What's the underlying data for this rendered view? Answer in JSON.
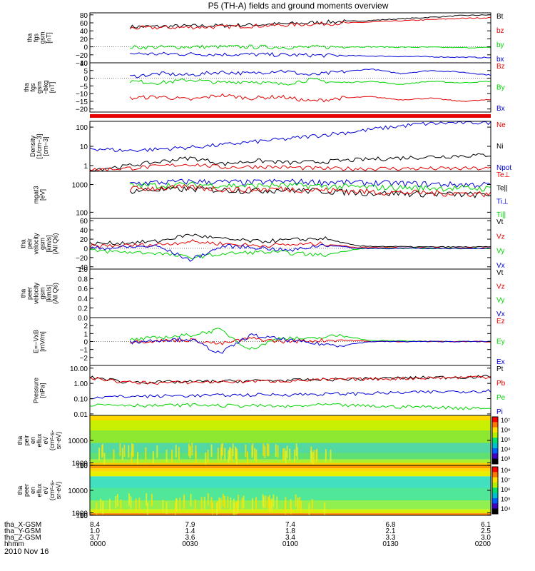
{
  "title": "P5 (TH-A) fields and ground moments overview",
  "date_label": "2010 Nov 16",
  "time_axis": {
    "row_labels": [
      "tha_X-GSM",
      "tha_Y-GSM",
      "tha_Z-GSM",
      "hhmm"
    ],
    "columns": [
      {
        "values": [
          "8.4",
          "1.0",
          "3.7",
          "0000"
        ]
      },
      {
        "values": [
          "7.9",
          "1.4",
          "3.6",
          "0030"
        ]
      },
      {
        "values": [
          "7.4",
          "1.8",
          "3.4",
          "0100"
        ]
      },
      {
        "values": [
          "6.8",
          "2.1",
          "3.3",
          "0130"
        ]
      },
      {
        "values": [
          "6.1",
          "2.5",
          "3.0",
          "0200"
        ]
      }
    ]
  },
  "colors": {
    "black": "#000000",
    "red": "#e60000",
    "green": "#00d400",
    "blue": "#0000d8"
  },
  "chart_data": [
    {
      "type": "line",
      "id": "p1",
      "ylabel": [
        "tha",
        "fgs",
        "gsm",
        "[nT]"
      ],
      "ylim": [
        -40,
        85
      ],
      "ticks": [
        "80",
        "60",
        "40",
        "20",
        "0",
        "−20",
        "−40"
      ],
      "tick_values": [
        80,
        60,
        40,
        20,
        0,
        -20,
        -40
      ],
      "legend": [
        "Bt",
        "bz",
        "by",
        "bx"
      ],
      "legend_colors": [
        "black",
        "red",
        "green",
        "blue"
      ],
      "x_range": [
        0.1,
        1.0
      ],
      "series": [
        {
          "name": "Bt",
          "color": "black",
          "values": [
            50,
            51,
            52,
            53,
            55,
            57,
            60,
            63,
            66,
            70,
            74,
            78,
            80
          ]
        },
        {
          "name": "bz",
          "color": "red",
          "values": [
            47,
            48,
            49,
            50,
            52,
            54,
            57,
            59,
            62,
            65,
            68,
            71,
            73
          ]
        },
        {
          "name": "by",
          "color": "green",
          "values": [
            -1,
            -1,
            0,
            0,
            0,
            -1,
            -1,
            0,
            0,
            -1,
            -1,
            -2,
            -2
          ]
        },
        {
          "name": "bx",
          "color": "blue",
          "values": [
            -17,
            -18,
            -18,
            -19,
            -19,
            -20,
            -21,
            -22,
            -23,
            -24,
            -25,
            -26,
            -27
          ]
        }
      ]
    },
    {
      "type": "line",
      "id": "p2",
      "ylabel": [
        "tha",
        "fgs",
        "gsm",
        "−bkg",
        "[nT]"
      ],
      "ylim": [
        -22,
        10
      ],
      "ticks": [
        "10",
        "5",
        "0",
        "−5",
        "−10",
        "−15",
        "−20"
      ],
      "tick_values": [
        10,
        5,
        0,
        -5,
        -10,
        -15,
        -20
      ],
      "legend": [
        "Bz",
        "By",
        "Bx"
      ],
      "legend_colors": [
        "red",
        "green",
        "blue"
      ],
      "x_range": [
        0.1,
        1.0
      ],
      "series": [
        {
          "name": "Bx",
          "color": "blue",
          "values": [
            1,
            3,
            2,
            4,
            3,
            5,
            2,
            4,
            6,
            3,
            5,
            4,
            2
          ]
        },
        {
          "name": "By",
          "color": "green",
          "values": [
            -2,
            -3,
            -1,
            -3,
            -2,
            -4,
            -1,
            -3,
            -2,
            -4,
            -2,
            -3,
            -2
          ]
        },
        {
          "name": "Bz",
          "color": "red",
          "values": [
            -13,
            -12,
            -14,
            -11,
            -13,
            -12,
            -15,
            -13,
            -12,
            -14,
            -13,
            -15,
            -14
          ]
        }
      ]
    },
    {
      "type": "line",
      "id": "p3",
      "log": true,
      "ylabel": [
        "Density",
        "[1/cm−3]",
        "[cm−3]"
      ],
      "ylim": [
        0.5,
        200
      ],
      "ticks": [
        "100",
        "10",
        "1"
      ],
      "tick_values": [
        100,
        10,
        1
      ],
      "legend": [
        "Ne",
        "Ni",
        "Npot"
      ],
      "legend_colors": [
        "red",
        "black",
        "blue"
      ],
      "x_range": [
        0.0,
        1.0
      ],
      "series": [
        {
          "name": "Npot",
          "color": "blue",
          "values": [
            8,
            6,
            7,
            9,
            12,
            18,
            25,
            40,
            60,
            100,
            150,
            170,
            180
          ]
        },
        {
          "name": "Ni",
          "color": "black",
          "values": [
            0.6,
            0.9,
            1.5,
            2.5,
            1.2,
            1.8,
            1.4,
            1.6,
            2.0,
            2.4,
            2.8,
            3.2,
            3.6
          ]
        },
        {
          "name": "Ne",
          "color": "red",
          "values": [
            0.6,
            0.7,
            0.9,
            1.2,
            0.8,
            0.9,
            0.8,
            0.7,
            0.7,
            0.7,
            0.7,
            0.7,
            0.7
          ]
        }
      ]
    },
    {
      "type": "line",
      "id": "p4",
      "log": true,
      "ylabel": [
        "mgat3",
        "[eV]"
      ],
      "ylim": [
        60,
        3000
      ],
      "ticks": [
        "1000",
        "100"
      ],
      "tick_values": [
        1000,
        100
      ],
      "legend": [
        "Te⊥",
        "Te||",
        "Ti⊥",
        "Ti||"
      ],
      "legend_colors": [
        "red",
        "black",
        "blue",
        "green"
      ],
      "x_range": [
        0.1,
        1.0
      ],
      "series": [
        {
          "name": "Ti⊥",
          "color": "blue",
          "values": [
            1100,
            1200,
            1300,
            1250,
            1200,
            1300,
            1250,
            1200,
            1150,
            1100,
            1050,
            1000,
            1000
          ]
        },
        {
          "name": "Ti||",
          "color": "green",
          "values": [
            900,
            950,
            1000,
            950,
            900,
            950,
            900,
            850,
            800,
            780,
            760,
            740,
            720
          ]
        },
        {
          "name": "Te||",
          "color": "black",
          "values": [
            600,
            650,
            700,
            650,
            600,
            650,
            600,
            550,
            500,
            480,
            460,
            440,
            430
          ]
        },
        {
          "name": "Te⊥",
          "color": "red",
          "values": [
            700,
            750,
            800,
            700,
            650,
            700,
            650,
            600,
            550,
            520,
            500,
            480,
            470
          ]
        }
      ]
    },
    {
      "type": "line",
      "id": "p5",
      "ylabel": [
        "tha",
        "peir",
        "velocity",
        "gsm",
        "[km/s]",
        "(All Qs)"
      ],
      "ylim": [
        -45,
        65
      ],
      "ticks": [
        "60",
        "40",
        "20",
        "0",
        "−20",
        "−40"
      ],
      "tick_values": [
        60,
        40,
        20,
        0,
        -20,
        -40
      ],
      "legend": [
        "Vt",
        "Vz",
        "Vy",
        "Vx"
      ],
      "legend_colors": [
        "black",
        "red",
        "green",
        "blue"
      ],
      "x_range": [
        0.0,
        1.0
      ],
      "series": [
        {
          "name": "Vt",
          "color": "black",
          "values": [
            10,
            12,
            15,
            30,
            20,
            15,
            18,
            22,
            5,
            4,
            3,
            3,
            3
          ]
        },
        {
          "name": "Vz",
          "color": "red",
          "values": [
            5,
            6,
            8,
            15,
            10,
            6,
            8,
            10,
            2,
            2,
            1,
            1,
            1
          ]
        },
        {
          "name": "Vy",
          "color": "green",
          "values": [
            -5,
            -8,
            -10,
            -20,
            -12,
            -8,
            -10,
            -15,
            -1,
            0,
            0,
            0,
            0
          ]
        },
        {
          "name": "Vx",
          "color": "blue",
          "values": [
            0,
            2,
            5,
            -25,
            5,
            2,
            -5,
            8,
            0,
            0,
            0,
            0,
            0
          ]
        }
      ]
    },
    {
      "type": "line",
      "id": "p6",
      "ylabel": [
        "tha",
        "peer",
        "velocity",
        "gsm",
        "[km/s]",
        "(All Qs)"
      ],
      "ylim": [
        0,
        1
      ],
      "ticks": [
        "1.0",
        "0.8",
        "0.6",
        "0.4",
        "0.2",
        "0.0"
      ],
      "tick_values": [
        1.0,
        0.8,
        0.6,
        0.4,
        0.2,
        0.0
      ],
      "legend": [
        "Vt",
        "Vz",
        "Vy",
        "Vx"
      ],
      "legend_colors": [
        "black",
        "red",
        "green",
        "blue"
      ],
      "x_range": [
        0.0,
        1.0
      ],
      "series": []
    },
    {
      "type": "line",
      "id": "p7",
      "ylabel": [
        "E=−VxB",
        "[mV/m]"
      ],
      "ylim": [
        -3,
        3
      ],
      "ticks": [
        "2",
        "1",
        "0",
        "−1",
        "−2"
      ],
      "tick_values": [
        2,
        1,
        0,
        -1,
        -2
      ],
      "legend": [
        "Ez",
        "Ey",
        "Ex"
      ],
      "legend_colors": [
        "red",
        "green",
        "blue"
      ],
      "x_range": [
        0.1,
        1.0
      ],
      "series": [
        {
          "name": "Ey",
          "color": "green",
          "values": [
            0.2,
            0.5,
            0.8,
            1.5,
            -1.0,
            0.5,
            0.3,
            0.8,
            0.1,
            0.1,
            0.0,
            0.0,
            0.0
          ]
        },
        {
          "name": "Ez",
          "color": "red",
          "values": [
            0.0,
            0.1,
            0.2,
            -0.3,
            0.4,
            0.0,
            0.1,
            0.2,
            0.0,
            0.0,
            0.0,
            0.0,
            0.0
          ]
        },
        {
          "name": "Ex",
          "color": "blue",
          "values": [
            -0.1,
            0.2,
            0.3,
            -1.5,
            0.8,
            0.3,
            -0.2,
            -0.5,
            0.0,
            0.0,
            0.0,
            0.0,
            0.0
          ]
        }
      ]
    },
    {
      "type": "line",
      "id": "p8",
      "log": true,
      "ylabel": [
        "Pressure",
        "[nPa]"
      ],
      "ylim": [
        0.008,
        15
      ],
      "ticks": [
        "10.00",
        "1.00",
        "0.10",
        "0.01"
      ],
      "tick_values": [
        10,
        1,
        0.1,
        0.01
      ],
      "legend": [
        "Pt",
        "Pb",
        "Pe",
        "Pi"
      ],
      "legend_colors": [
        "black",
        "red",
        "green",
        "blue"
      ],
      "x_range": [
        0.0,
        1.0
      ],
      "series": [
        {
          "name": "Pt",
          "color": "black",
          "values": [
            2.5,
            1.3,
            1.2,
            1.3,
            1.4,
            1.5,
            1.6,
            1.8,
            2.0,
            2.2,
            2.4,
            2.6,
            2.8
          ]
        },
        {
          "name": "Pb",
          "color": "red",
          "values": [
            2.3,
            1.2,
            1.1,
            1.2,
            1.3,
            1.4,
            1.5,
            1.7,
            1.9,
            2.1,
            2.3,
            2.5,
            2.7
          ]
        },
        {
          "name": "Pi",
          "color": "blue",
          "values": [
            0.12,
            0.14,
            0.15,
            0.16,
            0.17,
            0.18,
            0.19,
            0.2,
            0.22,
            0.24,
            0.27,
            0.3,
            0.33
          ]
        },
        {
          "name": "Pe",
          "color": "green",
          "values": [
            0.04,
            0.04,
            0.035,
            0.04,
            0.035,
            0.035,
            0.03,
            0.04,
            0.035,
            0.03,
            0.03,
            0.025,
            0.025
          ]
        }
      ]
    },
    {
      "type": "heatmap",
      "id": "p9",
      "ylabel": [
        "tha",
        "peir",
        "en",
        "eflux",
        "eV",
        "(cm²-s-",
        "sr-eV)"
      ],
      "ticks": [
        "10000",
        "1000",
        "100",
        "10"
      ],
      "tick_values": [
        10000,
        1000,
        100,
        10
      ],
      "ylim": [
        7,
        20000
      ],
      "colorbar_ticks": [
        "10⁷",
        "10⁶",
        "10⁵",
        "10⁴",
        "10³"
      ]
    },
    {
      "type": "heatmap",
      "id": "p10",
      "ylabel": [
        "tha",
        "peer",
        "en",
        "eflux",
        "eV",
        "(cm²-s-",
        "sr-eV)"
      ],
      "ticks": [
        "10000",
        "1000",
        "100",
        "10"
      ],
      "tick_values": [
        10000,
        1000,
        100,
        10
      ],
      "ylim": [
        7,
        20000
      ],
      "colorbar_ticks": [
        "10⁸",
        "10⁷",
        "10⁶",
        "10⁵",
        "10⁴"
      ]
    }
  ]
}
